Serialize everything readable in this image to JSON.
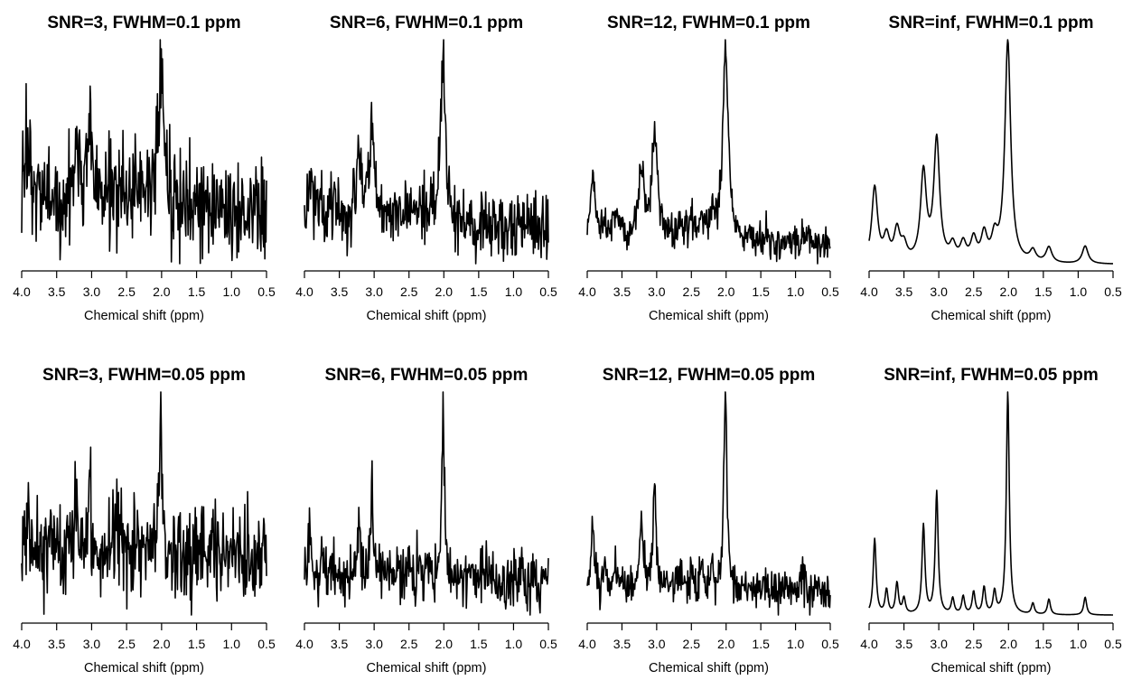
{
  "chart_data": [
    {
      "type": "line",
      "title": "SNR=3, FWHM=0.1 ppm",
      "xlabel": "Chemical shift (ppm)",
      "xlim": [
        4.0,
        0.5
      ],
      "xticks": [
        "4.0",
        "3.5",
        "3.0",
        "2.5",
        "2.0",
        "1.5",
        "1.0",
        "0.5"
      ],
      "snr": 3,
      "fwhm_ppm": 0.1,
      "noise_seed": 11,
      "axis_reversed": true,
      "y_axis_shown": false
    },
    {
      "type": "line",
      "title": "SNR=6, FWHM=0.1 ppm",
      "xlabel": "Chemical shift (ppm)",
      "xlim": [
        4.0,
        0.5
      ],
      "xticks": [
        "4.0",
        "3.5",
        "3.0",
        "2.5",
        "2.0",
        "1.5",
        "1.0",
        "0.5"
      ],
      "snr": 6,
      "fwhm_ppm": 0.1,
      "noise_seed": 23,
      "axis_reversed": true,
      "y_axis_shown": false
    },
    {
      "type": "line",
      "title": "SNR=12, FWHM=0.1 ppm",
      "xlabel": "Chemical shift (ppm)",
      "xlim": [
        4.0,
        0.5
      ],
      "xticks": [
        "4.0",
        "3.5",
        "3.0",
        "2.5",
        "2.0",
        "1.5",
        "1.0",
        "0.5"
      ],
      "snr": 12,
      "fwhm_ppm": 0.1,
      "noise_seed": 37,
      "axis_reversed": true,
      "y_axis_shown": false
    },
    {
      "type": "line",
      "title": "SNR=inf, FWHM=0.1 ppm",
      "xlabel": "Chemical shift (ppm)",
      "xlim": [
        4.0,
        0.5
      ],
      "xticks": [
        "4.0",
        "3.5",
        "3.0",
        "2.5",
        "2.0",
        "1.5",
        "1.0",
        "0.5"
      ],
      "snr": null,
      "fwhm_ppm": 0.1,
      "noise_seed": 0,
      "axis_reversed": true,
      "y_axis_shown": false
    },
    {
      "type": "line",
      "title": "SNR=3, FWHM=0.05 ppm",
      "xlabel": "Chemical shift (ppm)",
      "xlim": [
        4.0,
        0.5
      ],
      "xticks": [
        "4.0",
        "3.5",
        "3.0",
        "2.5",
        "2.0",
        "1.5",
        "1.0",
        "0.5"
      ],
      "snr": 3,
      "fwhm_ppm": 0.05,
      "noise_seed": 53,
      "axis_reversed": true,
      "y_axis_shown": false
    },
    {
      "type": "line",
      "title": "SNR=6, FWHM=0.05 ppm",
      "xlabel": "Chemical shift (ppm)",
      "xlim": [
        4.0,
        0.5
      ],
      "xticks": [
        "4.0",
        "3.5",
        "3.0",
        "2.5",
        "2.0",
        "1.5",
        "1.0",
        "0.5"
      ],
      "snr": 6,
      "fwhm_ppm": 0.05,
      "noise_seed": 67,
      "axis_reversed": true,
      "y_axis_shown": false
    },
    {
      "type": "line",
      "title": "SNR=12, FWHM=0.05 ppm",
      "xlabel": "Chemical shift (ppm)",
      "xlim": [
        4.0,
        0.5
      ],
      "xticks": [
        "4.0",
        "3.5",
        "3.0",
        "2.5",
        "2.0",
        "1.5",
        "1.0",
        "0.5"
      ],
      "snr": 12,
      "fwhm_ppm": 0.05,
      "noise_seed": 79,
      "axis_reversed": true,
      "y_axis_shown": false
    },
    {
      "type": "line",
      "title": "SNR=inf, FWHM=0.05 ppm",
      "xlabel": "Chemical shift (ppm)",
      "xlim": [
        4.0,
        0.5
      ],
      "xticks": [
        "4.0",
        "3.5",
        "3.0",
        "2.5",
        "2.0",
        "1.5",
        "1.0",
        "0.5"
      ],
      "snr": null,
      "fwhm_ppm": 0.05,
      "noise_seed": 0,
      "axis_reversed": true,
      "y_axis_shown": false
    }
  ],
  "peaks": [
    {
      "ppm": 3.92,
      "amplitude": 0.34
    },
    {
      "ppm": 3.75,
      "amplitude": 0.11
    },
    {
      "ppm": 3.6,
      "amplitude": 0.14
    },
    {
      "ppm": 3.5,
      "amplitude": 0.07
    },
    {
      "ppm": 3.22,
      "amplitude": 0.4
    },
    {
      "ppm": 3.03,
      "amplitude": 0.55
    },
    {
      "ppm": 2.8,
      "amplitude": 0.07
    },
    {
      "ppm": 2.65,
      "amplitude": 0.08
    },
    {
      "ppm": 2.5,
      "amplitude": 0.1
    },
    {
      "ppm": 2.35,
      "amplitude": 0.12
    },
    {
      "ppm": 2.2,
      "amplitude": 0.1
    },
    {
      "ppm": 2.01,
      "amplitude": 1.0
    },
    {
      "ppm": 1.65,
      "amplitude": 0.05
    },
    {
      "ppm": 1.42,
      "amplitude": 0.07
    },
    {
      "ppm": 0.9,
      "amplitude": 0.08
    }
  ]
}
